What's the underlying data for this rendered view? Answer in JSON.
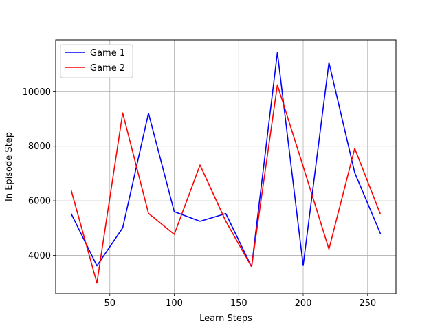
{
  "chart_data": {
    "type": "line",
    "title": "",
    "xlabel": "Learn Steps",
    "ylabel": "In Episode Step",
    "xlim": [
      8,
      272
    ],
    "ylim": [
      2600,
      11900
    ],
    "xticks": [
      50,
      100,
      150,
      200,
      250
    ],
    "yticks": [
      4000,
      6000,
      8000,
      10000
    ],
    "grid": true,
    "legend_position": "top-left",
    "x": [
      20,
      40,
      60,
      80,
      100,
      120,
      140,
      160,
      180,
      200,
      220,
      240,
      260
    ],
    "series": [
      {
        "name": "Game 1",
        "color": "#0000ff",
        "values": [
          5530,
          3620,
          5010,
          9210,
          5600,
          5250,
          5530,
          3580,
          11440,
          3630,
          11070,
          7030,
          4790
        ]
      },
      {
        "name": "Game 2",
        "color": "#ff0000",
        "values": [
          6390,
          2990,
          9220,
          5540,
          4770,
          7310,
          5250,
          3580,
          10250,
          7260,
          4230,
          7920,
          5500
        ]
      }
    ]
  }
}
